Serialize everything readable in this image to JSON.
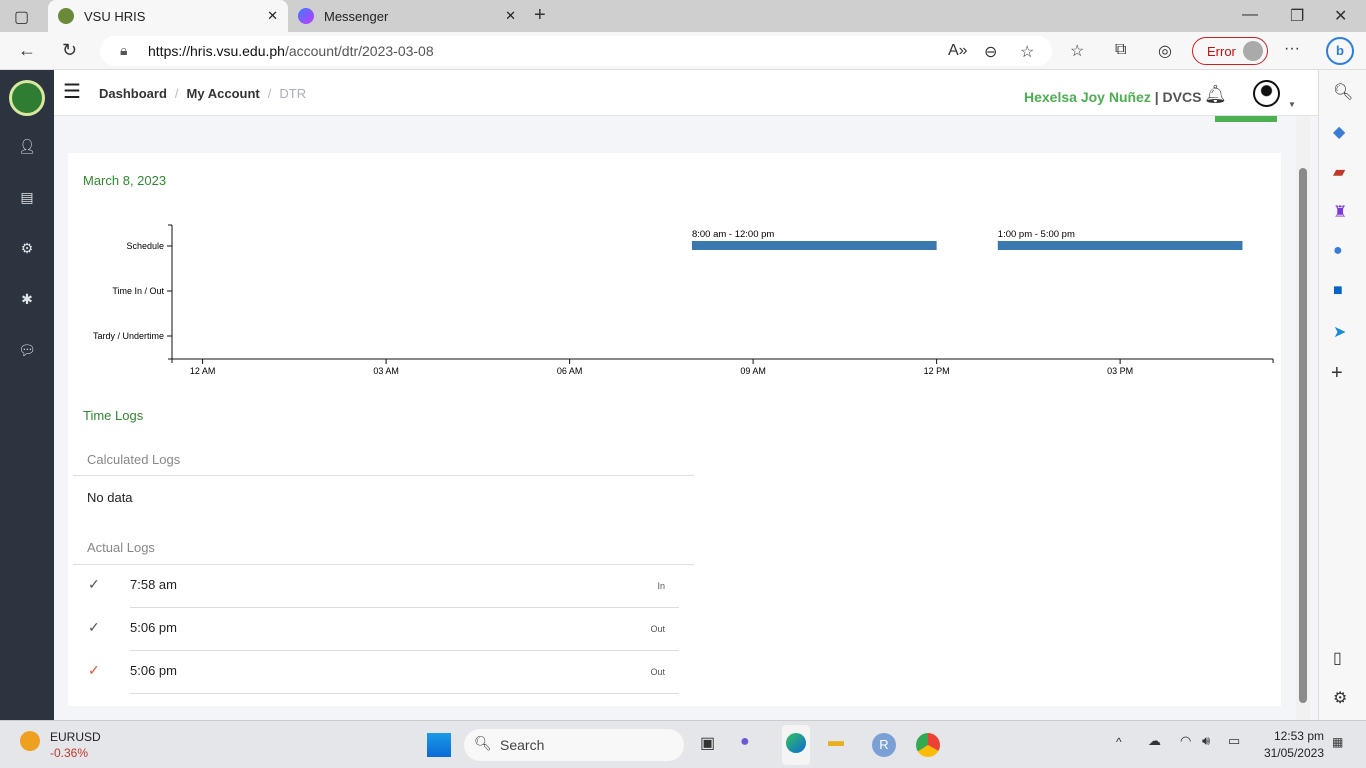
{
  "browser": {
    "tabs": [
      {
        "title": "VSU HRIS",
        "active": true
      },
      {
        "title": "Messenger",
        "active": false
      }
    ],
    "url_host": "https://hris.vsu.edu.ph",
    "url_path": "/account/dtr/2023-03-08",
    "profile_status": "Error"
  },
  "header": {
    "breadcrumb": [
      "Dashboard",
      "My Account",
      "DTR"
    ],
    "user_name": "Hexelsa Joy Nuñez",
    "user_dept": "DVCS",
    "separator": "|"
  },
  "main": {
    "date": "March 8, 2023",
    "time_logs_title": "Time Logs",
    "calculated_logs_title": "Calculated Logs",
    "calculated_logs_empty": "No data",
    "actual_logs_title": "Actual Logs",
    "actual_logs": [
      {
        "time": "7:58 am",
        "type": "In",
        "check_color": "#555555"
      },
      {
        "time": "5:06 pm",
        "type": "Out",
        "check_color": "#555555"
      },
      {
        "time": "5:06 pm",
        "type": "Out",
        "check_color": "#e8503a"
      }
    ]
  },
  "chart_data": {
    "type": "timeline",
    "categories": [
      "Schedule",
      "Time In / Out",
      "Tardy / Undertime"
    ],
    "x_ticks": [
      "12 AM",
      "03 AM",
      "06 AM",
      "09 AM",
      "12 PM",
      "03 PM"
    ],
    "xlim": [
      "-0.5h",
      "17.5h"
    ],
    "bars": [
      {
        "category": "Schedule",
        "start": "08:00",
        "end": "12:00",
        "label": "8:00 am - 12:00 pm",
        "color": "#3a78b0"
      },
      {
        "category": "Schedule",
        "start": "13:00",
        "end": "17:00",
        "label": "1:00 pm - 5:00 pm",
        "color": "#3a78b0"
      }
    ]
  },
  "taskbar": {
    "ticker": "EURUSD",
    "ticker_change": "-0.36%",
    "search": "Search",
    "time": "12:53 pm",
    "date": "31/05/2023"
  },
  "colors": {
    "accent": "#4caf50",
    "sidebar": "#2c343f",
    "bar": "#3a78b0"
  }
}
